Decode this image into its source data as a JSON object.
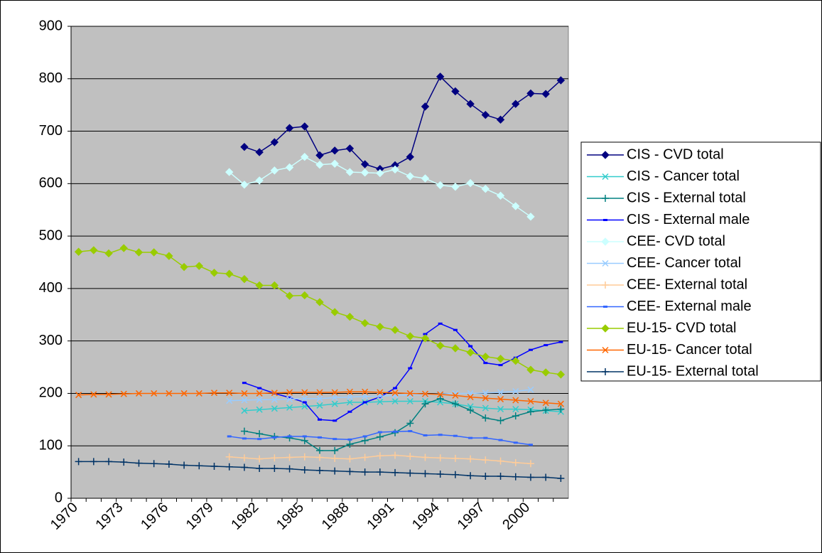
{
  "chart_data": {
    "type": "line",
    "categories": [
      "1970",
      null,
      null,
      "1973",
      null,
      null,
      "1976",
      null,
      null,
      "1979",
      null,
      null,
      "1982",
      null,
      null,
      "1985",
      null,
      null,
      "1988",
      null,
      null,
      "1991",
      null,
      null,
      "1994",
      null,
      null,
      "1997",
      null,
      null,
      "2000",
      null,
      null
    ],
    "ylim": [
      0,
      900
    ],
    "yticks": [
      0,
      100,
      200,
      300,
      400,
      500,
      600,
      700,
      800,
      900
    ],
    "grid": true,
    "legend": "right",
    "series": [
      {
        "name": "CIS - CVD total",
        "color": "#000080",
        "marker": "diamond",
        "values": [
          null,
          null,
          null,
          null,
          null,
          null,
          null,
          null,
          null,
          null,
          null,
          670,
          660,
          679,
          706,
          709,
          654,
          663,
          667,
          637,
          628,
          635,
          651,
          747,
          804,
          776,
          752,
          731,
          722,
          752,
          772,
          771,
          797
        ]
      },
      {
        "name": "CIS - Cancer total",
        "color": "#33cccc",
        "marker": "x",
        "values": [
          null,
          null,
          null,
          null,
          null,
          null,
          null,
          null,
          null,
          null,
          null,
          167,
          169,
          171,
          173,
          175,
          177,
          180,
          183,
          183,
          184,
          185,
          185,
          185,
          183,
          180,
          175,
          172,
          170,
          170,
          169,
          167,
          165
        ]
      },
      {
        "name": "CIS - External total",
        "color": "#008080",
        "marker": "plus",
        "values": [
          null,
          null,
          null,
          null,
          null,
          null,
          null,
          null,
          null,
          null,
          null,
          128,
          123,
          118,
          115,
          110,
          91,
          91,
          103,
          110,
          117,
          125,
          143,
          180,
          190,
          180,
          168,
          153,
          148,
          157,
          165,
          168,
          170
        ]
      },
      {
        "name": "CIS - External male",
        "color": "#0000ff",
        "marker": "dash",
        "values": [
          null,
          null,
          null,
          null,
          null,
          null,
          null,
          null,
          null,
          null,
          null,
          220,
          210,
          200,
          192,
          183,
          150,
          148,
          165,
          183,
          193,
          210,
          248,
          313,
          333,
          321,
          290,
          258,
          254,
          268,
          283,
          292,
          298
        ]
      },
      {
        "name": "CEE- CVD total",
        "color": "#ccffff",
        "marker": "diamond",
        "values": [
          null,
          null,
          null,
          null,
          null,
          null,
          null,
          null,
          null,
          null,
          622,
          598,
          606,
          625,
          631,
          651,
          636,
          638,
          622,
          621,
          620,
          627,
          614,
          610,
          597,
          594,
          601,
          590,
          577,
          557,
          537,
          null,
          null
        ]
      },
      {
        "name": "CEE- Cancer total",
        "color": "#99ccff",
        "marker": "x",
        "values": [
          null,
          null,
          null,
          null,
          null,
          null,
          null,
          null,
          null,
          null,
          186,
          187,
          188,
          188,
          189,
          190,
          190,
          192,
          193,
          194,
          195,
          196,
          197,
          198,
          199,
          200,
          200,
          201,
          202,
          204,
          207,
          null,
          null
        ]
      },
      {
        "name": "CEE- External total",
        "color": "#ffcc99",
        "marker": "plus",
        "values": [
          null,
          null,
          null,
          null,
          null,
          null,
          null,
          null,
          null,
          null,
          79,
          77,
          75,
          77,
          78,
          79,
          78,
          76,
          75,
          78,
          81,
          82,
          80,
          78,
          77,
          76,
          75,
          73,
          71,
          68,
          66,
          null,
          null
        ]
      },
      {
        "name": "CEE- External male",
        "color": "#3366ff",
        "marker": "dash",
        "values": [
          null,
          null,
          null,
          null,
          null,
          null,
          null,
          null,
          null,
          null,
          118,
          114,
          113,
          116,
          118,
          118,
          116,
          113,
          112,
          118,
          126,
          127,
          128,
          120,
          121,
          119,
          115,
          115,
          111,
          106,
          102,
          null,
          null
        ]
      },
      {
        "name": "EU-15- CVD total",
        "color": "#99cc00",
        "marker": "diamond",
        "values": [
          470,
          473,
          467,
          477,
          469,
          469,
          462,
          441,
          443,
          430,
          428,
          418,
          406,
          406,
          386,
          387,
          374,
          355,
          346,
          334,
          327,
          321,
          309,
          305,
          291,
          286,
          278,
          270,
          266,
          262,
          245,
          240,
          236
        ]
      },
      {
        "name": "EU-15- Cancer total",
        "color": "#ff6600",
        "marker": "x",
        "values": [
          197,
          198,
          198,
          199,
          200,
          200,
          200,
          200,
          200,
          201,
          201,
          200,
          200,
          201,
          202,
          202,
          202,
          202,
          203,
          203,
          202,
          201,
          200,
          199,
          198,
          196,
          193,
          191,
          189,
          187,
          185,
          182,
          180
        ]
      },
      {
        "name": "EU-15- External total",
        "color": "#003366",
        "marker": "plus",
        "values": [
          70,
          70,
          70,
          69,
          67,
          66,
          65,
          63,
          62,
          61,
          60,
          59,
          57,
          57,
          56,
          54,
          53,
          52,
          51,
          50,
          50,
          49,
          48,
          47,
          46,
          45,
          43,
          42,
          42,
          41,
          40,
          40,
          38
        ]
      }
    ]
  }
}
